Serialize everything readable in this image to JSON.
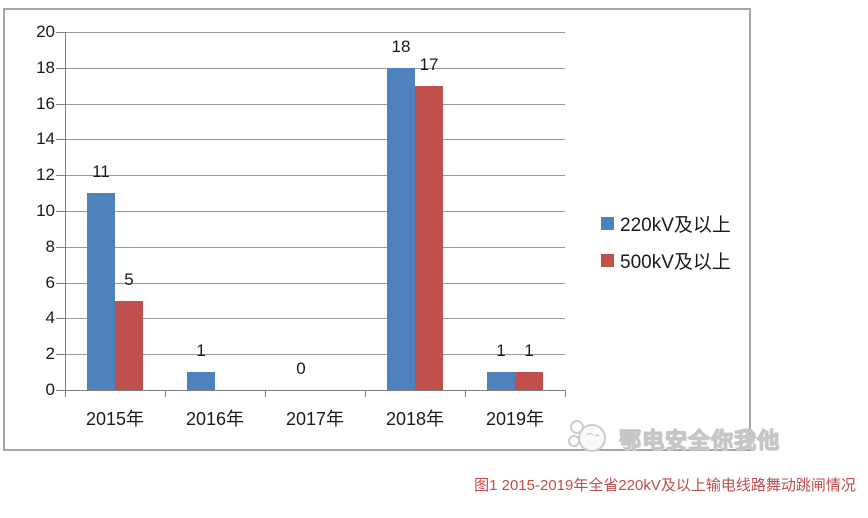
{
  "chart_data": {
    "type": "bar",
    "title": "",
    "xlabel": "",
    "ylabel": "",
    "categories": [
      "2015年",
      "2016年",
      "2017年",
      "2018年",
      "2019年"
    ],
    "series": [
      {
        "name": "220kV及以上",
        "color": "#4F81BD",
        "values": [
          11,
          1,
          0,
          18,
          1
        ],
        "labels": [
          "11",
          "1",
          "0",
          "18",
          "1"
        ]
      },
      {
        "name": "500kV及以上",
        "color": "#C0504D",
        "values": [
          5,
          0,
          0,
          17,
          1
        ],
        "labels": [
          "5",
          "",
          "",
          "17",
          "1"
        ]
      }
    ],
    "ylim": [
      0,
      20
    ],
    "yticks": [
      0,
      2,
      4,
      6,
      8,
      10,
      12,
      14,
      16,
      18,
      20
    ],
    "grid": true,
    "legend_position": "right",
    "gridline_color": "#9a9a9a",
    "axis_color": "#7f7f7f",
    "frame_border_color": "#a6a6a6"
  },
  "watermark": {
    "text": "鄂电安全你我他",
    "logo": "mascot-face-icon",
    "color": "#d9d9d9"
  },
  "caption": {
    "label": "图1",
    "text": "图1  2015-2019年全省220kV及以上输电线路舞动跳闸情况",
    "color": "#BF4D4B"
  }
}
